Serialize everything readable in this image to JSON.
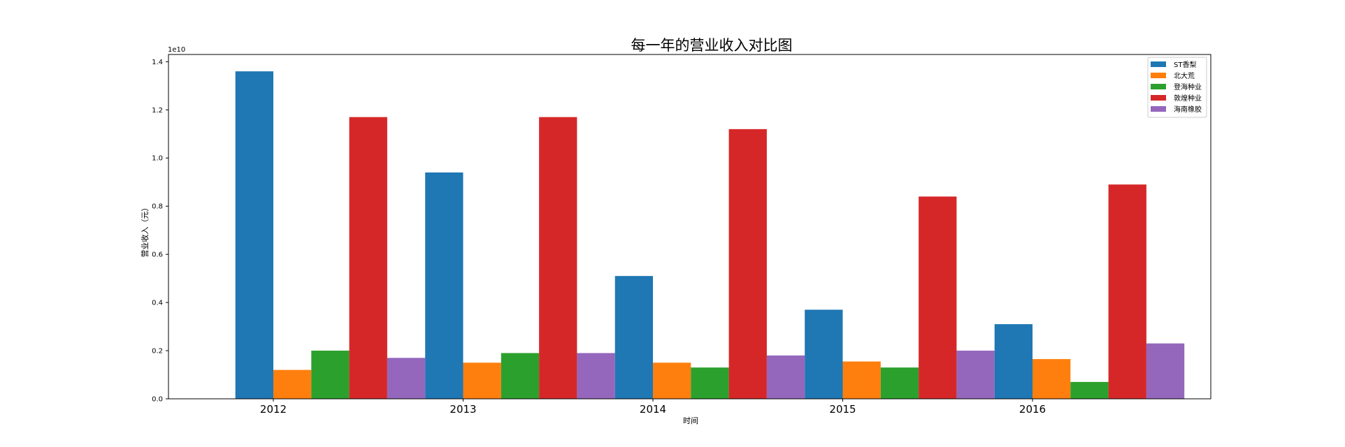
{
  "chart_data": {
    "type": "bar",
    "title": "每一年的营业收入对比图",
    "xlabel": "时间",
    "ylabel": "营业收入（元）",
    "y_multiplier_label": "1e10",
    "categories": [
      "2012",
      "2013",
      "2014",
      "2015",
      "2016"
    ],
    "ylim": [
      0,
      1.43
    ],
    "y_ticks": [
      0.0,
      0.2,
      0.4,
      0.6,
      0.8,
      1.0,
      1.2,
      1.4
    ],
    "y_tick_labels": [
      "0.0",
      "0.2",
      "0.4",
      "0.6",
      "0.8",
      "1.0",
      "1.2",
      "1.4"
    ],
    "legend_position": "top-right",
    "grid": false,
    "series": [
      {
        "name": "ST香梨",
        "color": "#1f77b4",
        "values": [
          1.36,
          0.94,
          0.51,
          0.37,
          0.31
        ]
      },
      {
        "name": "北大荒",
        "color": "#ff7f0e",
        "values": [
          0.12,
          0.15,
          0.15,
          0.155,
          0.165
        ]
      },
      {
        "name": "登海种业",
        "color": "#2ca02c",
        "values": [
          0.2,
          0.19,
          0.13,
          0.13,
          0.07
        ]
      },
      {
        "name": "敦煌种业",
        "color": "#d62728",
        "values": [
          1.17,
          1.17,
          1.12,
          0.84,
          0.89
        ]
      },
      {
        "name": "海南橡胶",
        "color": "#9467bd",
        "values": [
          0.17,
          0.19,
          0.18,
          0.2,
          0.23
        ]
      }
    ]
  }
}
